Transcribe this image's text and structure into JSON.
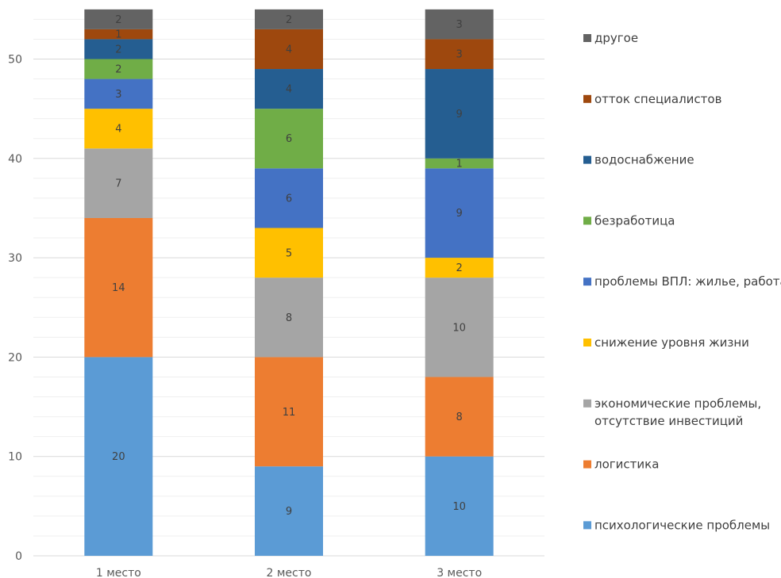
{
  "chart_data": {
    "type": "bar",
    "stacked": true,
    "categories": [
      "1 место",
      "2 место",
      "3 место"
    ],
    "ylim": [
      0,
      55
    ],
    "yticks": [
      0,
      10,
      20,
      30,
      40,
      50
    ],
    "grid": true,
    "legend_position": "right",
    "series": [
      {
        "name": "психологические проблемы",
        "color": "#5B9BD5",
        "values": [
          20,
          9,
          10
        ]
      },
      {
        "name": "логистика",
        "color": "#ED7D31",
        "values": [
          14,
          11,
          8
        ]
      },
      {
        "name": "экономические проблемы, отсутствие инвестиций",
        "color": "#A5A5A5",
        "values": [
          7,
          8,
          10
        ]
      },
      {
        "name": "снижение уровня жизни",
        "color": "#FFC000",
        "values": [
          4,
          5,
          2
        ]
      },
      {
        "name": "проблемы ВПЛ: жилье, работа",
        "color": "#4472C4",
        "values": [
          3,
          6,
          9
        ]
      },
      {
        "name": "безработица",
        "color": "#70AD47",
        "values": [
          2,
          6,
          1
        ]
      },
      {
        "name": "водоснабжение",
        "color": "#255E91",
        "values": [
          2,
          4,
          9
        ]
      },
      {
        "name": "отток специалистов",
        "color": "#9E480E",
        "values": [
          1,
          4,
          3
        ]
      },
      {
        "name": "другое",
        "color": "#636363",
        "values": [
          2,
          2,
          3
        ]
      }
    ]
  }
}
